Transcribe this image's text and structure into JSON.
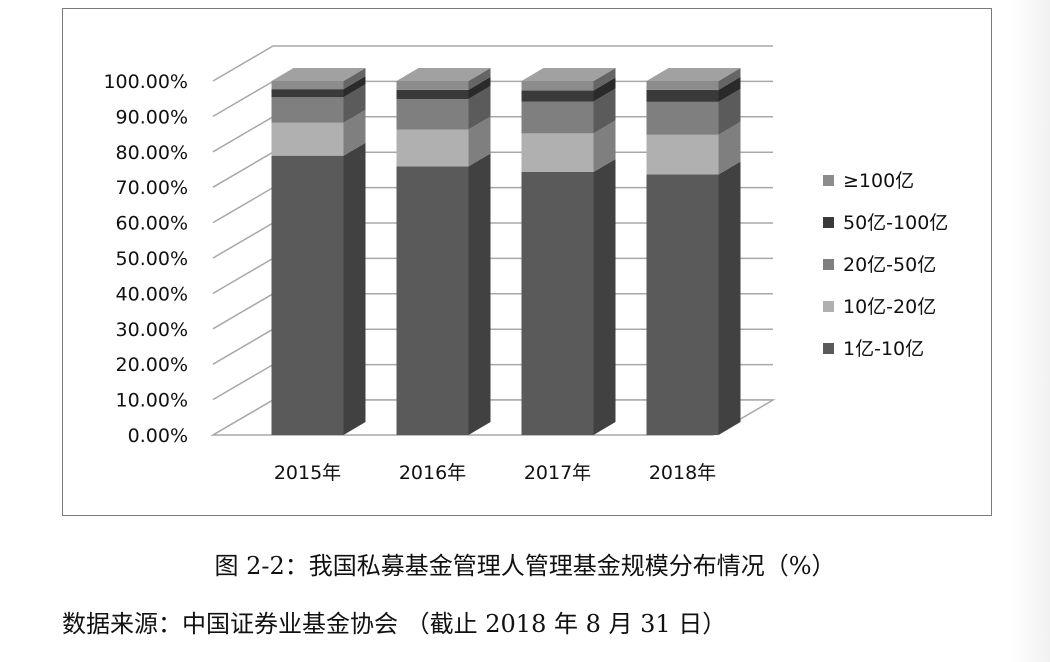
{
  "chart_data": {
    "type": "stacked-bar-3d",
    "categories": [
      "2015年",
      "2016年",
      "2017年",
      "2018年"
    ],
    "y_tick_labels": [
      "0.00%",
      "10.00%",
      "20.00%",
      "30.00%",
      "40.00%",
      "50.00%",
      "60.00%",
      "70.00%",
      "80.00%",
      "90.00%",
      "100.00%"
    ],
    "ylim": [
      0,
      100
    ],
    "grid": true,
    "legend_position": "right",
    "series": [
      {
        "name": "1亿-10亿",
        "color": "#5a5a5a",
        "values": [
          78.9,
          75.9,
          74.3,
          73.6
        ]
      },
      {
        "name": "10亿-20亿",
        "color": "#b0b0b0",
        "values": [
          9.3,
          10.4,
          10.9,
          11.2
        ]
      },
      {
        "name": "20亿-50亿",
        "color": "#7f7f7f",
        "values": [
          7.2,
          8.6,
          9.0,
          9.3
        ]
      },
      {
        "name": "50亿-100亿",
        "color": "#3a3a3a",
        "values": [
          2.3,
          2.6,
          3.1,
          3.4
        ]
      },
      {
        "name": "≥100亿",
        "color": "#8c8c8c",
        "values": [
          2.3,
          2.5,
          2.7,
          2.5
        ]
      }
    ]
  },
  "caption": {
    "figure": "图 2-2：我国私募基金管理人管理基金规模分布情况（%）",
    "source": "数据来源：中国证券业基金协会 （截止 2018 年 8 月 31 日）"
  }
}
